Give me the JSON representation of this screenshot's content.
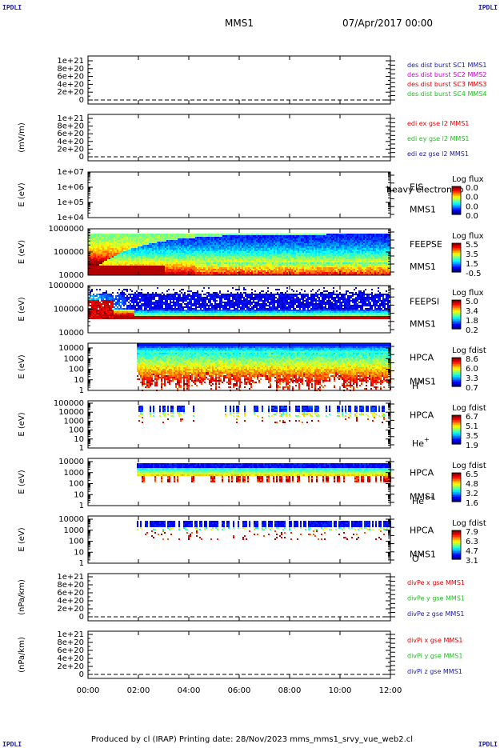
{
  "header": {
    "corner_label": "IPDLI",
    "title": "MMS1",
    "date": "07/Apr/2017 00:00"
  },
  "footer": {
    "text": "Produced by cl (IRAP)   Printing date: 28/Nov/2023   mms_mms1_srvy_vue_web2.cl"
  },
  "colors": {
    "red": "#e00000",
    "green": "#22bb22",
    "blue": "#1a1aa6",
    "magenta": "#cc00cc",
    "frame": "#000000"
  },
  "chart_data": {
    "type": "heatmap",
    "x_ticks": [
      "00:00",
      "02:00",
      "04:00",
      "06:00",
      "08:00",
      "10:00",
      "12:00"
    ],
    "xlim_hours": [
      0,
      12
    ],
    "panels": [
      {
        "id": "des-dist",
        "kind": "line",
        "ylabel": "",
        "yticks": [
          "1e+21",
          "8e+20",
          "6e+20",
          "4e+20",
          "2e+20",
          "0"
        ],
        "ylim": [
          0,
          1e+21
        ],
        "dashed_zero": true,
        "legend": [
          {
            "text": "des dist burst SC1 MMS1",
            "color": "#1a1aa6"
          },
          {
            "text": "des dist burst SC2 MMS2",
            "color": "#cc00cc"
          },
          {
            "text": "des dist burst SC3 MMS3",
            "color": "#e00000"
          },
          {
            "text": "des dist burst SC4 MMS4",
            "color": "#22bb22"
          }
        ]
      },
      {
        "id": "edi",
        "kind": "line",
        "ylabel": "(mV/m)",
        "yticks": [
          "1e+21",
          "8e+20",
          "6e+20",
          "4e+20",
          "2e+20",
          "0"
        ],
        "ylim": [
          0,
          1e+21
        ],
        "dashed_zero": true,
        "legend": [
          {
            "text": "edi ex gse l2 MMS1",
            "color": "#e00000"
          },
          {
            "text": "edi ey gse l2 MMS1",
            "color": "#22bb22"
          },
          {
            "text": "edi ez gse l2 MMS1",
            "color": "#1a1aa6"
          }
        ]
      },
      {
        "id": "eis",
        "kind": "spectrogram",
        "ylabel": "E (eV)",
        "yticks": [
          "1e+07",
          "1e+06",
          "1e+05",
          "1e+04"
        ],
        "ylim": [
          10000,
          10000000
        ],
        "instrument": [
          "EIS",
          "MMS1"
        ],
        "extra_label": "heavy electron to",
        "colorbar": {
          "title": "Log flux",
          "ticks": [
            "0.0",
            "0.0",
            "0.0",
            "0.0"
          ]
        },
        "data": {
          "start_hour": null,
          "style": "empty"
        }
      },
      {
        "id": "feepse",
        "kind": "spectrogram",
        "ylabel": "E (eV)",
        "yticks": [
          "1000000",
          "100000",
          "10000"
        ],
        "ylim": [
          10000,
          1000000
        ],
        "instrument": [
          "FEEPSE",
          "MMS1"
        ],
        "colorbar": {
          "title": "Log flux",
          "ticks": [
            "5.5",
            "3.5",
            "1.5",
            "-0.5"
          ]
        },
        "data": {
          "start_hour": 0,
          "style": "feepse"
        }
      },
      {
        "id": "feepsi",
        "kind": "spectrogram",
        "ylabel": "E (eV)",
        "yticks": [
          "1000000",
          "100000",
          "10000"
        ],
        "ylim": [
          10000,
          1000000
        ],
        "instrument": [
          "FEEPSI",
          "MMS1"
        ],
        "colorbar": {
          "title": "Log flux",
          "ticks": [
            "5.0",
            "3.4",
            "1.8",
            "0.2"
          ]
        },
        "data": {
          "start_hour": 0,
          "style": "feepsi"
        }
      },
      {
        "id": "hpca-h",
        "kind": "spectrogram",
        "ylabel": "E (eV)",
        "yticks": [
          "10000",
          "1000",
          "100",
          "10",
          "1"
        ],
        "ylim": [
          1,
          40000
        ],
        "instrument": [
          "HPCA",
          "MMS1"
        ],
        "species": "H",
        "species_sup": "+",
        "colorbar": {
          "title": "Log fdist",
          "ticks": [
            "8.6",
            "6.0",
            "3.3",
            "0.7"
          ]
        },
        "data": {
          "start_hour": 1.95,
          "style": "hpca_h"
        }
      },
      {
        "id": "hpca-he1",
        "kind": "spectrogram",
        "ylabel": "E (eV)",
        "yticks": [
          "100000",
          "10000",
          "1000",
          "100",
          "10",
          "1"
        ],
        "ylim": [
          1,
          100000
        ],
        "instrument": [
          "HPCA"
        ],
        "species": "He",
        "species_sup": "+",
        "colorbar": {
          "title": "Log fdist",
          "ticks": [
            "6.7",
            "5.1",
            "3.5",
            "1.9"
          ]
        },
        "data": {
          "start_hour": 1.95,
          "style": "hpca_heplus"
        }
      },
      {
        "id": "hpca-he2",
        "kind": "spectrogram",
        "ylabel": "E (eV)",
        "yticks": [
          "10000",
          "1000",
          "100",
          "10",
          "1"
        ],
        "ylim": [
          1,
          40000
        ],
        "instrument": [
          "HPCA",
          "MMS1"
        ],
        "species": "He",
        "species_sup": "++",
        "colorbar": {
          "title": "Log fdist",
          "ticks": [
            "6.5",
            "4.8",
            "3.2",
            "1.6"
          ]
        },
        "data": {
          "start_hour": 1.95,
          "style": "hpca_hepp"
        }
      },
      {
        "id": "hpca-o",
        "kind": "spectrogram",
        "ylabel": "E (eV)",
        "yticks": [
          "10000",
          "1000",
          "100",
          "10",
          "1"
        ],
        "ylim": [
          1,
          40000
        ],
        "instrument": [
          "HPCA",
          "MMS1"
        ],
        "species": "O",
        "species_sup": "+",
        "colorbar": {
          "title": "Log fdist",
          "ticks": [
            "7.9",
            "6.3",
            "4.7",
            "3.1"
          ]
        },
        "data": {
          "start_hour": 1.95,
          "style": "hpca_o"
        }
      },
      {
        "id": "divpe",
        "kind": "line",
        "ylabel": "(nPa/km)",
        "yticks": [
          "1e+21",
          "8e+20",
          "6e+20",
          "4e+20",
          "2e+20",
          "0"
        ],
        "ylim": [
          0,
          1e+21
        ],
        "dashed_zero": true,
        "legend": [
          {
            "text": "divPe x gse MMS1",
            "color": "#e00000"
          },
          {
            "text": "divPe y gse MMS1",
            "color": "#22bb22"
          },
          {
            "text": "divPe z gse MMS1",
            "color": "#1a1aa6"
          }
        ]
      },
      {
        "id": "divpi",
        "kind": "line",
        "ylabel": "(nPa/km)",
        "yticks": [
          "1e+21",
          "8e+20",
          "6e+20",
          "4e+20",
          "2e+20",
          "0"
        ],
        "ylim": [
          0,
          1e+21
        ],
        "dashed_zero": true,
        "legend": [
          {
            "text": "divPi x gse MMS1",
            "color": "#e00000"
          },
          {
            "text": "divPi y gse MMS1",
            "color": "#22bb22"
          },
          {
            "text": "divPi z gse MMS1",
            "color": "#1a1aa6"
          }
        ]
      }
    ]
  }
}
